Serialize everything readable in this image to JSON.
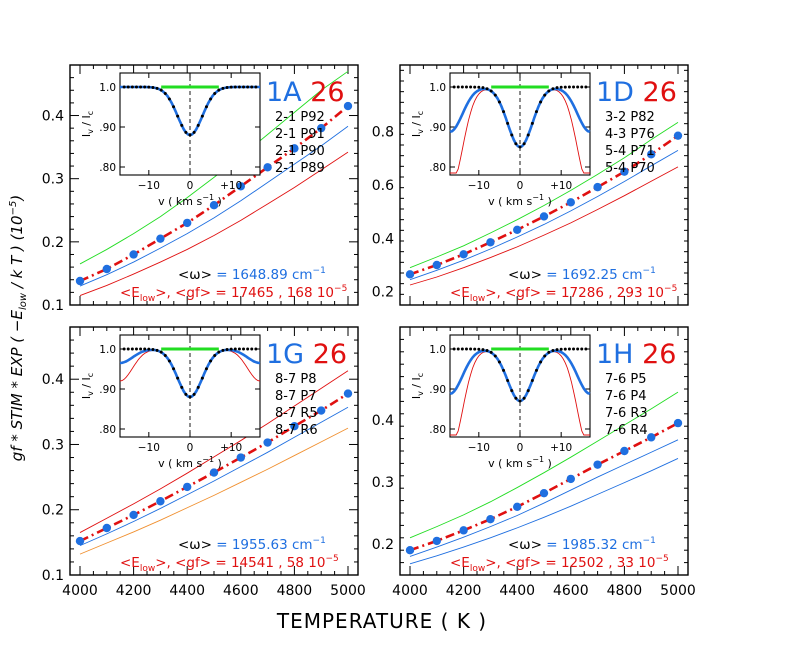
{
  "figure": {
    "xlabel": "TEMPERATURE  ( K )",
    "ylabel": "gf * STIM * EXP ( −E",
    "ylabel_sub": "low",
    "ylabel_tail": " / k T )  (10",
    "ylabel_sup": "−5",
    "ylabel_close": ")"
  },
  "colors": {
    "blue": "#1f6fe0",
    "red": "#e01010",
    "green": "#22dd22",
    "orange": "#f09030",
    "black": "#000000"
  },
  "icons": [
    "inset-line-profile-icon"
  ],
  "chart_data": [
    {
      "type": "line",
      "panel": "1A",
      "label_id": "1A",
      "label_num": "26",
      "lines": [
        "2-1  P92",
        "2-1  P91",
        "2-1  P90",
        "2-1  P89"
      ],
      "omega_text": "= 1648.89 cm",
      "omega_sup": "−1",
      "elow_text": "= 17465 , 168 10",
      "elow_sup": "−5",
      "xlim": [
        4000,
        5000
      ],
      "ylim": [
        0.1,
        0.48
      ],
      "yticks": [
        0.1,
        0.2,
        0.3,
        0.4
      ],
      "x": [
        4000,
        4100,
        4200,
        4300,
        4400,
        4500,
        4600,
        4700,
        4800,
        4900,
        5000
      ],
      "series": [
        {
          "name": "model",
          "values": [
            0.138,
            0.157,
            0.18,
            0.205,
            0.23,
            0.258,
            0.288,
            0.318,
            0.348,
            0.38,
            0.415
          ]
        },
        {
          "name": "upper",
          "values": [
            0.165,
            0.188,
            0.213,
            0.24,
            0.27,
            0.302,
            0.335,
            0.37,
            0.405,
            0.44,
            0.47
          ]
        },
        {
          "name": "lower",
          "values": [
            0.13,
            0.148,
            0.168,
            0.19,
            0.213,
            0.238,
            0.265,
            0.294,
            0.323,
            0.352,
            0.383
          ]
        },
        {
          "name": "lowest",
          "values": [
            0.115,
            0.131,
            0.149,
            0.168,
            0.188,
            0.21,
            0.234,
            0.26,
            0.286,
            0.314,
            0.342
          ]
        }
      ],
      "inset": {
        "ylabel": "I",
        "ylabel_sub1": "v",
        "ylabel_slash": " / I",
        "ylabel_sub2": "c",
        "xlabel": "v  ( km s",
        "xlabel_sup": "−1",
        "xlabel_close": ")",
        "yticks": [
          "1.0",
          ".90",
          ".80"
        ],
        "xticks": [
          "−10",
          "0",
          "+10"
        ],
        "depth": 0.12,
        "wings": "none"
      }
    },
    {
      "type": "line",
      "panel": "1D",
      "label_id": "1D",
      "label_num": "26",
      "lines": [
        "3-2  P82",
        "4-3  P76",
        "5-4  P71",
        "5-4  P70"
      ],
      "omega_text": "= 1692.25 cm",
      "omega_sup": "−1",
      "elow_text": "= 17286 , 293 10",
      "elow_sup": "−5",
      "xlim": [
        4000,
        5000
      ],
      "ylim": [
        0.15,
        1.05
      ],
      "yticks": [
        0.2,
        0.4,
        0.6,
        0.8
      ],
      "x": [
        4000,
        4100,
        4200,
        4300,
        4400,
        4500,
        4600,
        4700,
        4800,
        4900,
        5000
      ],
      "series": [
        {
          "name": "model",
          "values": [
            0.265,
            0.3,
            0.34,
            0.385,
            0.432,
            0.482,
            0.535,
            0.592,
            0.65,
            0.715,
            0.785
          ]
        },
        {
          "name": "upper",
          "values": [
            0.29,
            0.33,
            0.372,
            0.42,
            0.47,
            0.523,
            0.58,
            0.64,
            0.702,
            0.77,
            0.835
          ]
        },
        {
          "name": "lower",
          "values": [
            0.245,
            0.28,
            0.318,
            0.36,
            0.405,
            0.452,
            0.503,
            0.557,
            0.613,
            0.672,
            0.73
          ]
        },
        {
          "name": "lowest",
          "values": [
            0.225,
            0.255,
            0.29,
            0.328,
            0.368,
            0.412,
            0.458,
            0.508,
            0.56,
            0.614,
            0.668
          ]
        }
      ],
      "inset": {
        "ylabel": "I",
        "ylabel_sub1": "v",
        "ylabel_slash": " / I",
        "ylabel_sub2": "c",
        "xlabel": "v  ( km s",
        "xlabel_sup": "−1",
        "xlabel_close": ")",
        "yticks": [
          "1.0",
          ".90",
          ".80"
        ],
        "xticks": [
          "−10",
          "0",
          "+10"
        ],
        "depth": 0.15,
        "wings": "strong"
      }
    },
    {
      "type": "line",
      "panel": "1G",
      "label_id": "1G",
      "label_num": "26",
      "lines": [
        "8-7  P8",
        "8-7  P7",
        "8-7  R5",
        "8-7  R6"
      ],
      "omega_text": "= 1955.63 cm",
      "omega_sup": "−1",
      "elow_text": "= 14541 , 58 10",
      "elow_sup": "−5",
      "xlim": [
        4000,
        5000
      ],
      "ylim": [
        0.1,
        0.48
      ],
      "yticks": [
        0.1,
        0.2,
        0.3,
        0.4
      ],
      "x": [
        4000,
        4100,
        4200,
        4300,
        4400,
        4500,
        4600,
        4700,
        4800,
        4900,
        5000
      ],
      "series": [
        {
          "name": "model",
          "values": [
            0.152,
            0.172,
            0.192,
            0.213,
            0.235,
            0.257,
            0.28,
            0.303,
            0.328,
            0.352,
            0.378
          ]
        },
        {
          "name": "upper",
          "values": [
            0.165,
            0.187,
            0.209,
            0.232,
            0.256,
            0.281,
            0.306,
            0.332,
            0.359,
            0.386,
            0.413
          ]
        },
        {
          "name": "lower",
          "values": [
            0.145,
            0.163,
            0.182,
            0.202,
            0.223,
            0.244,
            0.266,
            0.288,
            0.311,
            0.334,
            0.357
          ]
        },
        {
          "name": "lowest",
          "values": [
            0.132,
            0.149,
            0.166,
            0.184,
            0.203,
            0.222,
            0.242,
            0.262,
            0.283,
            0.304,
            0.325
          ]
        }
      ],
      "inset": {
        "ylabel": "I",
        "ylabel_sub1": "v",
        "ylabel_slash": " / I",
        "ylabel_sub2": "c",
        "xlabel": "v  ( km s",
        "xlabel_sup": "−1",
        "xlabel_close": ")",
        "yticks": [
          "1.0",
          ".90",
          ".80"
        ],
        "xticks": [
          "−10",
          "0",
          "+10"
        ],
        "depth": 0.12,
        "wings": "weak"
      }
    },
    {
      "type": "line",
      "panel": "1H",
      "label_id": "1H",
      "label_num": "26",
      "lines": [
        "7-6  P5",
        "7-6  P4",
        "7-6  R3",
        "7-6  R4"
      ],
      "omega_text": "= 1985.32 cm",
      "omega_sup": "−1",
      "elow_text": "= 12502 , 33 10",
      "elow_sup": "−5",
      "xlim": [
        4000,
        5000
      ],
      "ylim": [
        0.15,
        0.55
      ],
      "yticks": [
        0.2,
        0.3,
        0.4
      ],
      "x": [
        4000,
        4100,
        4200,
        4300,
        4400,
        4500,
        4600,
        4700,
        4800,
        4900,
        5000
      ],
      "series": [
        {
          "name": "model",
          "values": [
            0.19,
            0.205,
            0.222,
            0.24,
            0.26,
            0.282,
            0.305,
            0.328,
            0.35,
            0.372,
            0.395
          ]
        },
        {
          "name": "upper",
          "values": [
            0.21,
            0.228,
            0.247,
            0.268,
            0.291,
            0.315,
            0.34,
            0.366,
            0.392,
            0.418,
            0.445
          ]
        },
        {
          "name": "lower",
          "values": [
            0.18,
            0.195,
            0.211,
            0.228,
            0.246,
            0.266,
            0.287,
            0.308,
            0.328,
            0.348,
            0.368
          ]
        },
        {
          "name": "lowest",
          "values": [
            0.168,
            0.181,
            0.195,
            0.21,
            0.226,
            0.243,
            0.261,
            0.28,
            0.299,
            0.318,
            0.338
          ]
        }
      ],
      "inset": {
        "ylabel": "I",
        "ylabel_sub1": "v",
        "ylabel_slash": " / I",
        "ylabel_sub2": "c",
        "xlabel": "v  ( km s",
        "xlabel_sup": "−1",
        "xlabel_close": ")",
        "yticks": [
          "1.0",
          ".90",
          ".80"
        ],
        "xticks": [
          "−10",
          "0",
          "+10"
        ],
        "depth": 0.13,
        "wings": "strong"
      }
    }
  ],
  "x_ticks": [
    "4000",
    "4200",
    "4400",
    "4600",
    "4800",
    "5000"
  ]
}
